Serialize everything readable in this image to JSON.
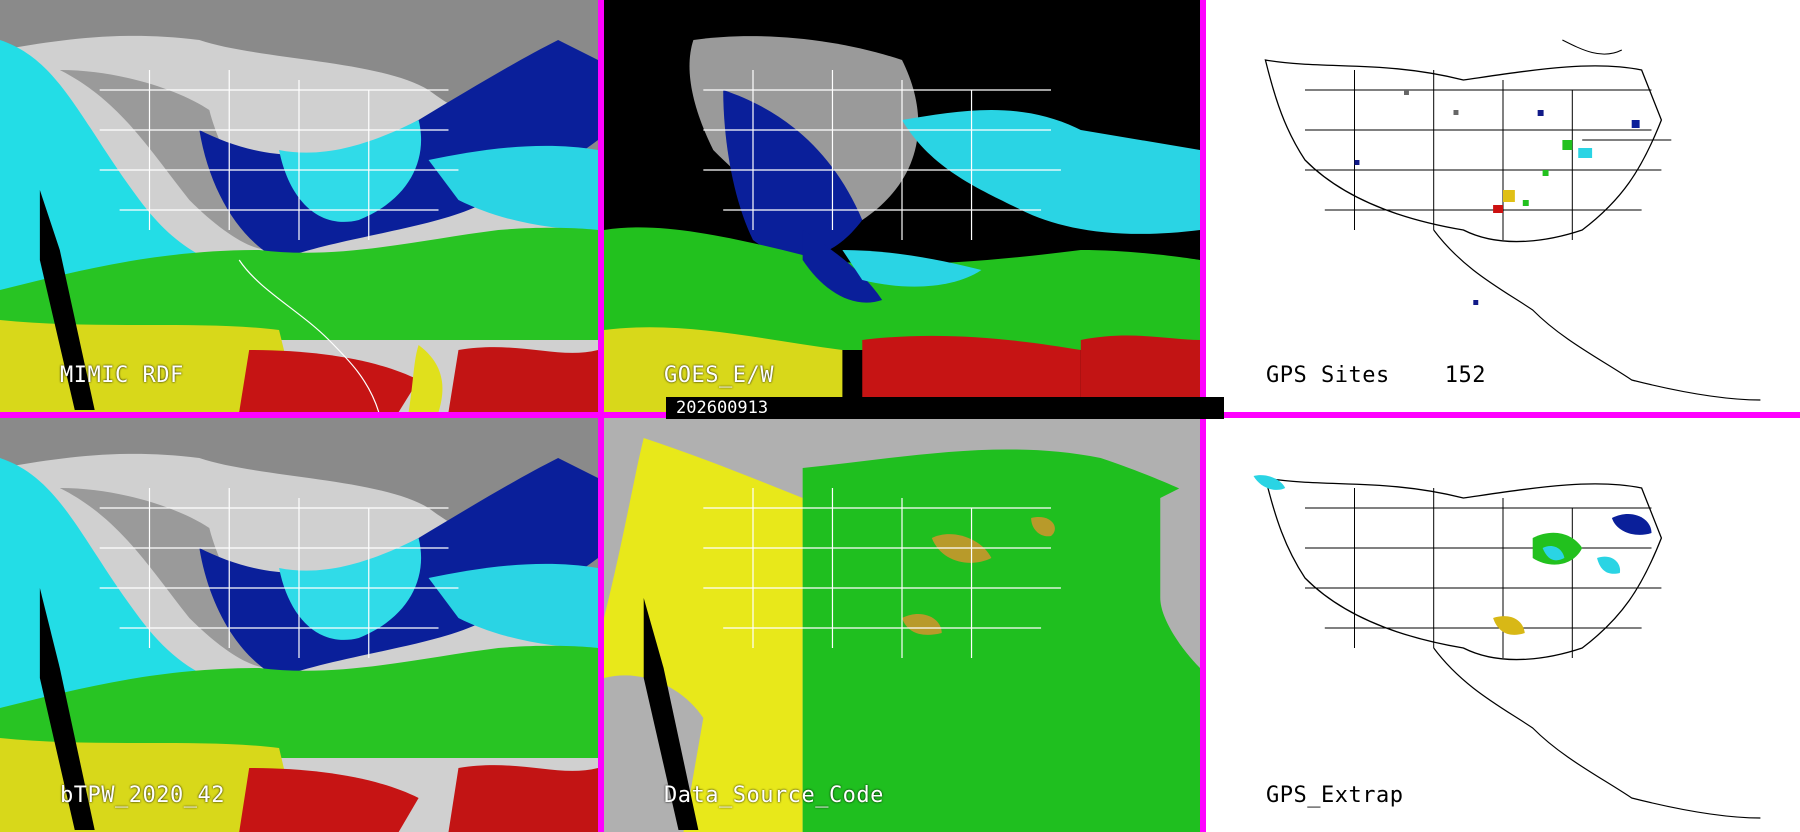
{
  "panels": {
    "mimic": {
      "label": "MIMIC RDF"
    },
    "goes": {
      "label": "GOES_E/W"
    },
    "gps_sites": {
      "label": "GPS Sites",
      "count": "152"
    },
    "btpw": {
      "label": "bTPW_2020_42"
    },
    "data_source": {
      "label": "Data_Source_Code"
    },
    "gps_extrap": {
      "label": "GPS_Extrap"
    }
  },
  "date_bar": {
    "text": "202600913"
  },
  "colors": {
    "divider": "#ff00ff",
    "dry_gray": "#9a9a9a",
    "low_blue": "#001a8c",
    "mid_cyan": "#23e0e6",
    "mid_green": "#22c11e",
    "high_yellow": "#e6e61a",
    "very_high_red": "#cc1010",
    "source_gray": "#b0b0b0",
    "source_yellow": "#e8e81a",
    "source_green": "#1fbf1f"
  }
}
